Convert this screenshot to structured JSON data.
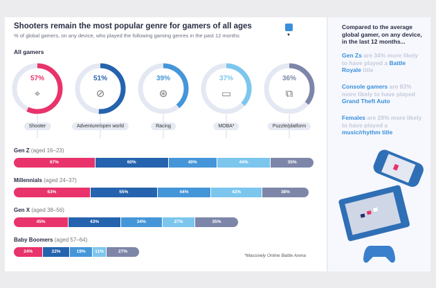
{
  "header": {
    "title": "Shooters remain the most popular genre for gamers of all ages",
    "subtitle": "% of global gamers, on any device, who played the following gaming genres in the past 12 months",
    "chart_icon": "bar-chart-icon"
  },
  "colors": {
    "Shooter": "#e8336b",
    "Adventure/open world": "#2563ae",
    "Racing": "#4596d8",
    "MOBA*": "#7cc6ee",
    "Puzzle/platform": "#7d86a8",
    "track": "#e4e8f2"
  },
  "chart_data": [
    {
      "type": "pie",
      "title": "All gamers",
      "categories": [
        "Shooter",
        "Adventure/open world",
        "Racing",
        "MOBA*",
        "Puzzle/platform"
      ],
      "values": [
        57,
        51,
        39,
        37,
        36
      ],
      "labels": [
        "57%",
        "51%",
        "39%",
        "37%",
        "36%"
      ],
      "icons": [
        "crosshair-icon",
        "compass-icon",
        "steering-wheel-icon",
        "map-icon",
        "puzzle-icon"
      ]
    },
    {
      "type": "bar",
      "stacked": true,
      "orientation": "horizontal",
      "categories": [
        "Shooter",
        "Adventure/open world",
        "Racing",
        "MOBA*",
        "Puzzle/platform"
      ],
      "series": [
        {
          "name": "Gen Z",
          "age": "(aged 16–23)",
          "values": [
            67,
            60,
            40,
            44,
            35
          ]
        },
        {
          "name": "Millennials",
          "age": "(aged 24–37)",
          "values": [
            63,
            55,
            44,
            42,
            38
          ]
        },
        {
          "name": "Gen X",
          "age": "(aged 38–56)",
          "values": [
            45,
            43,
            34,
            27,
            35
          ]
        },
        {
          "name": "Baby Boomers",
          "age": "(aged 57–64)",
          "values": [
            24,
            22,
            19,
            11,
            27
          ]
        }
      ]
    }
  ],
  "footnote": "*Massively Online Battle Arena",
  "side": {
    "heading": "Compared to the average global gamer, on any device, in the last 12 months...",
    "facts": [
      {
        "a": "Gen Zs",
        "b": " are 34% more likely to have played a ",
        "c": "Battle Royale",
        "d": " title"
      },
      {
        "a": "Console gamers",
        "b": " are 83% more likely to have played ",
        "c": "Grand Theft Auto",
        "d": ""
      },
      {
        "a": "Females",
        "b": " are 29% more likely to have played a ",
        "c": "music/rhythm title",
        "d": ""
      }
    ]
  }
}
